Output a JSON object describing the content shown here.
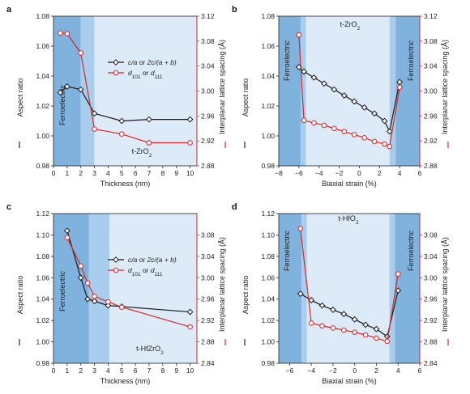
{
  "chart_data": [
    {
      "panel": "a",
      "type": "line",
      "xlabel": "Thickness (nm)",
      "ylabel_left": "Aspect ratio",
      "ylabel_right": "Interplanar lattice spacing (Å)",
      "xlim": [
        0,
        10.5
      ],
      "ylim": [
        0.98,
        1.08
      ],
      "y2lim": [
        2.88,
        3.12
      ],
      "xticks": [
        "0",
        "1",
        "2",
        "3",
        "4",
        "5",
        "6",
        "7",
        "8",
        "9",
        "10"
      ],
      "yticks": [
        "0.98",
        "1.00",
        "1.02",
        "1.04",
        "1.06",
        "1.08"
      ],
      "y2ticks": [
        "2.88",
        "2.92",
        "2.96",
        "3.00",
        "3.04",
        "3.08",
        "3.12"
      ],
      "region_labels": [
        "Ferroelectric",
        "t-ZrO2"
      ],
      "regions_data": [
        [
          0,
          2,
          "#7fb2dd"
        ],
        [
          2,
          3,
          "#a9cdec"
        ],
        [
          3,
          10.5,
          "#dcebf7"
        ]
      ],
      "legend": {
        "position": "center-right",
        "items": [
          "c/a or 2c/(a + b)",
          "d101 or d111"
        ]
      },
      "series": [
        {
          "name": "c/a or 2c/(a + b)",
          "axis": "left",
          "color": "#1a1a1a",
          "marker": "diamond",
          "x": [
            0.5,
            1,
            2,
            3,
            5,
            7,
            10
          ],
          "y": [
            1.029,
            1.033,
            1.031,
            1.015,
            1.01,
            1.011,
            1.011
          ]
        },
        {
          "name": "d101 or d111",
          "axis": "right",
          "color": "#d62728",
          "marker": "circle",
          "x": [
            0.5,
            1,
            2,
            3,
            5,
            7,
            10
          ],
          "y": [
            3.093,
            3.092,
            3.061,
            2.939,
            2.931,
            2.917,
            2.917
          ]
        }
      ]
    },
    {
      "panel": "b",
      "type": "line",
      "xlabel": "Biaxial strain (%)",
      "ylabel_left": "Aspect ratio",
      "ylabel_right": "Interplanar lattice spacing (Å)",
      "xlim": [
        -8,
        6
      ],
      "ylim": [
        0.98,
        1.08
      ],
      "y2lim": [
        2.88,
        3.12
      ],
      "xticks": [
        "−8",
        "−6",
        "−4",
        "−2",
        "0",
        "2",
        "4",
        "6"
      ],
      "yticks": [
        "0.98",
        "1.00",
        "1.02",
        "1.04",
        "1.06",
        "1.08"
      ],
      "y2ticks": [
        "2.88",
        "2.92",
        "2.96",
        "3.00",
        "3.04",
        "3.08",
        "3.12"
      ],
      "region_labels": [
        "Ferroelectric",
        "t-ZrO2",
        "Ferroelectric"
      ],
      "regions_data": [
        [
          -8,
          -5.8,
          "#7fb2dd"
        ],
        [
          -5.8,
          -5.3,
          "#a9cdec"
        ],
        [
          -5.3,
          3.0,
          "#dcebf7"
        ],
        [
          3.0,
          3.6,
          "#a9cdec"
        ],
        [
          3.6,
          6,
          "#7fb2dd"
        ]
      ],
      "series": [
        {
          "name": "c/a or 2c/(a + b)",
          "axis": "left",
          "color": "#1a1a1a",
          "marker": "diamond",
          "x": [
            -6,
            -5.5,
            -4.5,
            -3.5,
            -2.5,
            -1.5,
            -0.5,
            0.5,
            1.5,
            2.5,
            3,
            4
          ],
          "y": [
            1.046,
            1.043,
            1.039,
            1.035,
            1.031,
            1.027,
            1.023,
            1.019,
            1.015,
            1.01,
            1.003,
            1.036
          ]
        },
        {
          "name": "d101 or d111",
          "axis": "right",
          "color": "#d62728",
          "marker": "circle",
          "x": [
            -6,
            -5.5,
            -4.5,
            -3.5,
            -2.5,
            -1.5,
            -0.5,
            0.5,
            1.5,
            2.5,
            3,
            4
          ],
          "y": [
            3.09,
            2.953,
            2.949,
            2.945,
            2.94,
            2.935,
            2.93,
            2.925,
            2.919,
            2.915,
            2.911,
            3.006
          ]
        }
      ]
    },
    {
      "panel": "c",
      "type": "line",
      "xlabel": "Thickness (nm)",
      "ylabel_left": "Aspect ratio",
      "ylabel_right": "Interplanar lattice spacing (Å)",
      "xlim": [
        0,
        10.5
      ],
      "ylim": [
        0.98,
        1.12
      ],
      "y2lim": [
        2.84,
        3.12
      ],
      "xticks": [
        "0",
        "1",
        "2",
        "3",
        "4",
        "5",
        "6",
        "7",
        "8",
        "9",
        "10"
      ],
      "yticks": [
        "0.98",
        "1.00",
        "1.02",
        "1.04",
        "1.06",
        "1.08",
        "1.10",
        "1.12"
      ],
      "y2ticks": [
        "2.84",
        "2.88",
        "2.92",
        "2.96",
        "3.00",
        "3.04",
        "3.08"
      ],
      "region_labels": [
        "Ferroelectric",
        "t-HfZrO2"
      ],
      "regions_data": [
        [
          0,
          2.6,
          "#7fb2dd"
        ],
        [
          2.6,
          4.1,
          "#a9cdec"
        ],
        [
          4.1,
          10.5,
          "#dcebf7"
        ]
      ],
      "legend": {
        "position": "center-right",
        "items": [
          "c/a or 2c/(a + b)",
          "d101 or d111"
        ]
      },
      "series": [
        {
          "name": "c/a or 2c/(a + b)",
          "axis": "left",
          "color": "#1a1a1a",
          "marker": "diamond",
          "x": [
            1,
            2,
            2.5,
            3,
            4,
            5,
            10
          ],
          "y": [
            1.104,
            1.06,
            1.04,
            1.038,
            1.034,
            1.033,
            1.028
          ]
        },
        {
          "name": "d101 or d111",
          "axis": "right",
          "color": "#d62728",
          "marker": "circle",
          "x": [
            1,
            2,
            2.5,
            3,
            4,
            5,
            10
          ],
          "y": [
            3.075,
            3.022,
            2.99,
            2.965,
            2.955,
            2.945,
            2.908
          ]
        }
      ]
    },
    {
      "panel": "d",
      "type": "line",
      "xlabel": "Biaxial strain (%)",
      "ylabel_left": "Aspect ratio",
      "ylabel_right": "Interplanar lattice spacing (Å)",
      "xlim": [
        -7,
        6
      ],
      "ylim": [
        0.98,
        1.12
      ],
      "y2lim": [
        2.84,
        3.12
      ],
      "xticks": [
        "−6",
        "−4",
        "−2",
        "0",
        "2",
        "4",
        "6"
      ],
      "yticks": [
        "0.98",
        "1.00",
        "1.02",
        "1.04",
        "1.06",
        "1.08",
        "1.10",
        "1.12"
      ],
      "y2ticks": [
        "2.84",
        "2.88",
        "2.92",
        "2.96",
        "3.00",
        "3.04",
        "3.08"
      ],
      "region_labels": [
        "Ferroelectric",
        "t-HfO2",
        "Ferroelectric"
      ],
      "regions_data": [
        [
          -7,
          -4.9,
          "#7fb2dd"
        ],
        [
          -4.9,
          -4.4,
          "#a9cdec"
        ],
        [
          -4.4,
          3.2,
          "#dcebf7"
        ],
        [
          3.2,
          3.7,
          "#a9cdec"
        ],
        [
          3.7,
          6,
          "#7fb2dd"
        ]
      ],
      "series": [
        {
          "name": "c/a or 2c/(a + b)",
          "axis": "left",
          "color": "#1a1a1a",
          "marker": "diamond",
          "x": [
            -5,
            -4,
            -3,
            -2,
            -1,
            0,
            1,
            2,
            3,
            4
          ],
          "y": [
            1.045,
            1.039,
            1.034,
            1.03,
            1.026,
            1.021,
            1.016,
            1.012,
            1.005,
            1.048
          ]
        },
        {
          "name": "d101 or d111",
          "axis": "right",
          "color": "#d62728",
          "marker": "circle",
          "x": [
            -5,
            -4,
            -3,
            -2,
            -1,
            0,
            1,
            2,
            3,
            4
          ],
          "y": [
            3.092,
            2.915,
            2.91,
            2.906,
            2.902,
            2.898,
            2.893,
            2.887,
            2.881,
            3.007
          ]
        }
      ]
    }
  ]
}
